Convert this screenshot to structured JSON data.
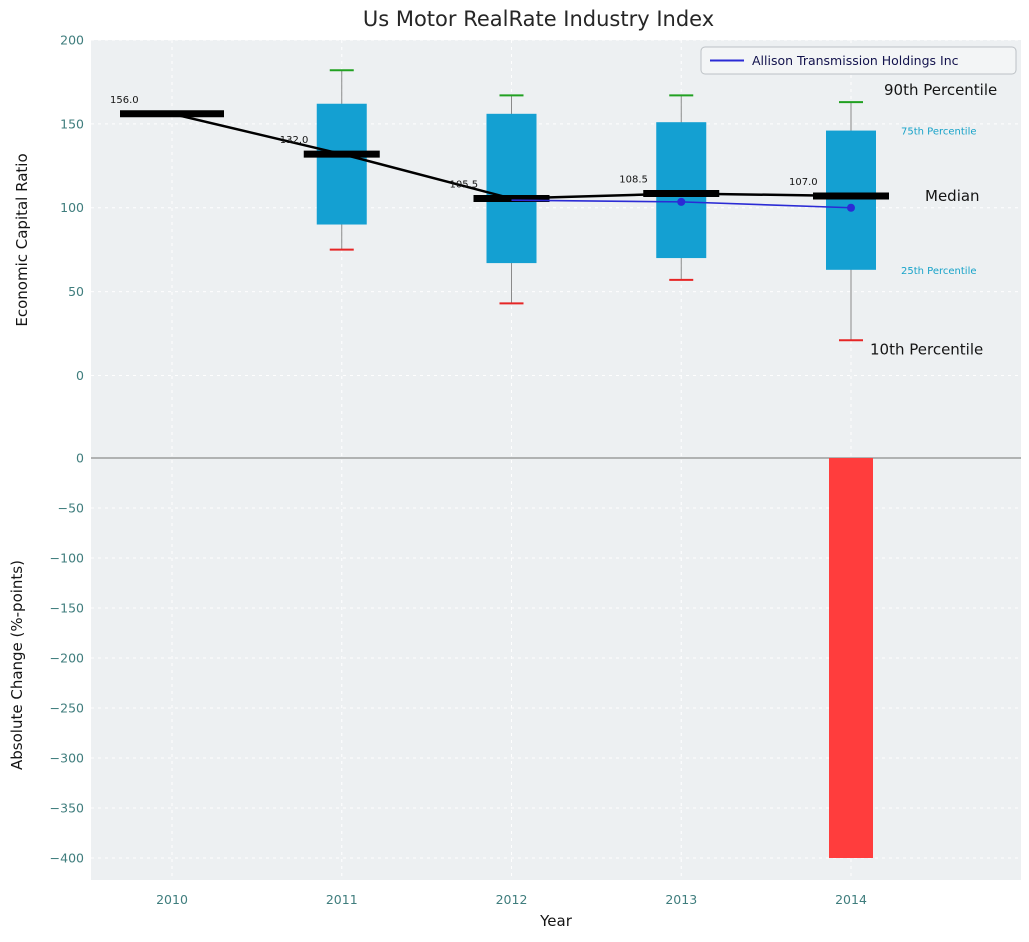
{
  "title": "Us Motor RealRate Industry Index",
  "legend": {
    "label": "Allison Transmission Holdings Inc"
  },
  "annotations": {
    "p90": "90th Percentile",
    "p75": "75th Percentile",
    "median": "Median",
    "p25": "25th Percentile",
    "p10": "10th Percentile"
  },
  "colors": {
    "box_fill": "#14a0d2",
    "median_line": "#000000",
    "whisker": "#8a8a8a",
    "cap_top": "#21a121",
    "cap_bottom": "#e62525",
    "company_line": "#2b2bd5",
    "bar_negative": "#ff3d3d",
    "tick_label": "#3f7d7d",
    "percentile_small_label": "#18a3c9",
    "plot_bg": "#edf0f2",
    "grid": "#ffffff",
    "zero_line": "#8c8c8c",
    "text": "#151515",
    "legend_text": "#13134d"
  },
  "chart_data": [
    {
      "type": "box",
      "panel": "top",
      "title": "Us Motor RealRate Industry Index",
      "ylabel": "Economic Capital Ratio",
      "yticks": [
        200,
        150,
        100,
        50,
        0
      ],
      "ylim": [
        -48,
        200
      ],
      "categories": [
        2010,
        2011,
        2012,
        2013,
        2014
      ],
      "boxes": [
        {
          "year": 2010,
          "median": 156.0,
          "median_label": "156.0",
          "q1": null,
          "q3": null,
          "p10": null,
          "p90": null
        },
        {
          "year": 2011,
          "median": 132.0,
          "median_label": "132.0",
          "q1": 90,
          "q3": 162,
          "p10": 75,
          "p90": 182
        },
        {
          "year": 2012,
          "median": 105.5,
          "median_label": "105.5",
          "q1": 67,
          "q3": 156,
          "p10": 43,
          "p90": 167
        },
        {
          "year": 2013,
          "median": 108.5,
          "median_label": "108.5",
          "q1": 70,
          "q3": 151,
          "p10": 57,
          "p90": 167
        },
        {
          "year": 2014,
          "median": 107.0,
          "median_label": "107.0",
          "q1": 63,
          "q3": 146,
          "p10": 21,
          "p90": 163
        }
      ],
      "company_series": {
        "name": "Allison Transmission Holdings Inc",
        "points": [
          {
            "year": 2012,
            "value": 104.5,
            "marker": false
          },
          {
            "year": 2013,
            "value": 103.5,
            "marker": true
          },
          {
            "year": 2014,
            "value": 100.0,
            "marker": true
          }
        ]
      },
      "legend_position": "upper right",
      "grid": true
    },
    {
      "type": "bar",
      "panel": "bottom",
      "ylabel": "Absolute Change (%-points)",
      "xlabel": "Year",
      "yticks": [
        0,
        -50,
        -100,
        -150,
        -200,
        -250,
        -300,
        -350,
        -400
      ],
      "ylim": [
        -420,
        2
      ],
      "categories": [
        2010,
        2011,
        2012,
        2013,
        2014
      ],
      "values": [
        null,
        null,
        null,
        null,
        -400
      ],
      "grid": true
    }
  ]
}
